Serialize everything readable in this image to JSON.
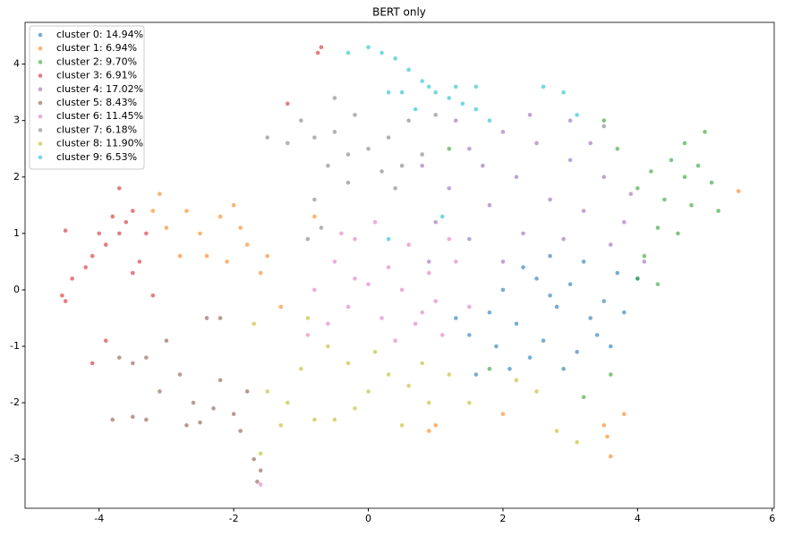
{
  "chart_data": {
    "type": "scatter",
    "title": "BERT only",
    "legend": "upper left",
    "xlim": [
      -5.1,
      6.03
    ],
    "ylim": [
      -3.87,
      4.74
    ],
    "xticks": [
      -4,
      -2,
      0,
      2,
      4,
      6
    ],
    "yticks": [
      -3,
      -2,
      -1,
      0,
      1,
      2,
      3,
      4
    ],
    "series": [
      {
        "name": "cluster 0: 14.94%",
        "color": "#1f77b4",
        "x": [
          2.5,
          3,
          2.8,
          3.3,
          2.2,
          1.8,
          2.6,
          3.1,
          2.9,
          2.4,
          3.5,
          3.7,
          3.2,
          2.7,
          2,
          1.5,
          1.3,
          1.6,
          2.1,
          3.4,
          3.8,
          4,
          2.3,
          1.9,
          2.7,
          3.6
        ],
        "y": [
          0.2,
          0.1,
          -0.3,
          -0.5,
          -0.6,
          -0.4,
          -0.9,
          -1.1,
          -1.4,
          -1.2,
          -0.2,
          0.3,
          0.5,
          0.6,
          0,
          -0.8,
          -0.5,
          -1.5,
          -1.4,
          -0.8,
          -0.4,
          0.2,
          0.4,
          -1.0,
          -0.1,
          -1.0
        ]
      },
      {
        "name": "cluster 1: 6.94%",
        "color": "#ff7f0e",
        "x": [
          -3.2,
          -3,
          -2.7,
          -2.5,
          -2.2,
          -2,
          -2.4,
          -2.1,
          -1.8,
          -1.6,
          -3.1,
          -2.8,
          -1.9,
          -1.5,
          -1.3,
          3.6,
          3.55,
          3.5,
          3.8,
          1.0,
          0.9,
          2.0,
          -0.8,
          5.5
        ],
        "y": [
          1.4,
          1.1,
          1.4,
          1.0,
          1.3,
          1.5,
          0.6,
          0.5,
          0.8,
          0.3,
          1.7,
          0.6,
          1.1,
          0.6,
          -0.3,
          -2.95,
          -2.6,
          -2.4,
          -2.2,
          -2.4,
          -2.5,
          -2.2,
          1.3,
          1.75
        ]
      },
      {
        "name": "cluster 2: 9.70%",
        "color": "#2ca02c",
        "x": [
          4.2,
          4.5,
          4.7,
          5,
          4.9,
          4.4,
          4.8,
          4.3,
          4.6,
          4.1,
          4.0,
          5.1,
          3.7,
          3.5,
          4.3,
          3.6,
          3.2,
          1.8,
          1.2,
          5.2,
          4.7,
          4.0
        ],
        "y": [
          2.1,
          2.3,
          2.0,
          2.8,
          2.2,
          1.6,
          1.5,
          1.1,
          1.0,
          0.6,
          0.2,
          1.9,
          2.5,
          3.0,
          0.1,
          -1.5,
          -1.9,
          -1.4,
          2.5,
          1.4,
          2.6,
          1.8
        ]
      },
      {
        "name": "cluster 3: 6.91%",
        "color": "#d62728",
        "x": [
          -3.8,
          -3.6,
          -3.7,
          -3.9,
          -4.1,
          -4.2,
          -4.4,
          -4.5,
          -4.55,
          -4.5,
          -3.5,
          -3.3,
          -3.7,
          -3.4,
          -3.2,
          -1.2,
          -0.7,
          -0.75,
          -3.9,
          -4.1,
          -4,
          -3.5
        ],
        "y": [
          1.3,
          1.2,
          1.0,
          0.8,
          0.6,
          0.4,
          0.2,
          1.05,
          -0.1,
          -0.2,
          1.4,
          1.0,
          1.8,
          0.5,
          -0.1,
          3.3,
          4.3,
          4.2,
          -0.9,
          -1.3,
          1.0,
          0.3
        ]
      },
      {
        "name": "cluster 4: 17.02%",
        "color": "#9467bd",
        "x": [
          1.5,
          2,
          2.5,
          3,
          3.5,
          2.2,
          1.8,
          2.7,
          3.2,
          3.8,
          1.2,
          1,
          1.5,
          2.3,
          2.9,
          3.6,
          4.1,
          0.8,
          1.3,
          2.4,
          3.0,
          3.9,
          2.0,
          0.9,
          1.7,
          3.3
        ],
        "y": [
          2.5,
          2.8,
          2.6,
          2.3,
          2.0,
          2.0,
          1.5,
          1.6,
          1.4,
          1.2,
          1.8,
          1.2,
          0.9,
          1.0,
          0.9,
          0.8,
          0.5,
          2.2,
          3.0,
          3.1,
          3.0,
          1.7,
          0.5,
          0.5,
          2.2,
          2.6
        ]
      },
      {
        "name": "cluster 5: 8.43%",
        "color": "#8c564b",
        "x": [
          -3.7,
          -3.5,
          -3.3,
          -3.8,
          -3.5,
          -3.3,
          -2.6,
          -2.3,
          -2,
          -2.5,
          -1.7,
          -1.65,
          -1.6,
          -2.2,
          -2.4,
          -3,
          -2.8,
          -2.2,
          -1.8,
          -2.7,
          -3.1,
          -1.9
        ],
        "y": [
          -1.2,
          -1.3,
          -1.2,
          -2.3,
          -2.25,
          -2.3,
          -2.0,
          -2.1,
          -2.2,
          -2.35,
          -3.0,
          -3.4,
          -3.2,
          -0.5,
          -0.5,
          -0.9,
          -1.5,
          -1.6,
          -1.8,
          -2.4,
          -1.8,
          -2.5
        ]
      },
      {
        "name": "cluster 6: 11.45%",
        "color": "#e377c2",
        "x": [
          -0.5,
          -0.2,
          0,
          0.3,
          0.5,
          0.8,
          1.1,
          0.2,
          -0.3,
          -0.8,
          -0.6,
          0.6,
          0.9,
          1.3,
          -0.2,
          0.1,
          1.0,
          0.4,
          -0.9,
          1.5,
          0.7,
          -0.4,
          1.2,
          -1.6
        ],
        "y": [
          0.5,
          0.2,
          0.1,
          0.4,
          0,
          -0.4,
          -0.8,
          -0.5,
          -0.3,
          0,
          -0.6,
          0.8,
          0.3,
          0.5,
          0.9,
          1.2,
          -0.2,
          -0.9,
          -0.8,
          -0.3,
          -0.6,
          1.0,
          0.9,
          -3.45
        ]
      },
      {
        "name": "cluster 7: 6.18%",
        "color": "#7f7f7f",
        "x": [
          -1,
          -0.8,
          -0.5,
          -0.3,
          0,
          0.3,
          0.6,
          0.8,
          -1.2,
          -0.6,
          -0.3,
          0.2,
          -0.8,
          -0.5,
          1.0,
          0.5,
          -1.5,
          -0.2,
          -0.9,
          0.4,
          3.5,
          -0.7
        ],
        "y": [
          3.0,
          2.7,
          2.8,
          2.4,
          2.5,
          2.7,
          3.0,
          2.4,
          2.6,
          2.2,
          1.9,
          2.1,
          1.6,
          3.4,
          3.1,
          2.2,
          2.7,
          3.1,
          0.9,
          1.8,
          2.9,
          1.1
        ]
      },
      {
        "name": "cluster 8: 11.90%",
        "color": "#bcbd22",
        "x": [
          -1.5,
          -1.2,
          -0.8,
          -0.5,
          -0.2,
          0,
          0.3,
          0.6,
          0.9,
          -0.3,
          -0.6,
          -1.0,
          0.1,
          0.8,
          1.2,
          1.5,
          0.5,
          -1.3,
          -1.6,
          -1.7,
          2.2,
          2.8,
          3.1,
          -0.9,
          2.5
        ],
        "y": [
          -1.8,
          -2,
          -2.3,
          -2.3,
          -2.1,
          -1.8,
          -1.5,
          -1.7,
          -2.0,
          -1.3,
          -1.0,
          -1.4,
          -1.1,
          -1.3,
          -1.5,
          -2.0,
          -2.4,
          -2.4,
          -2.9,
          -0.6,
          -1.6,
          -2.5,
          -2.7,
          -0.5,
          -1.8
        ]
      },
      {
        "name": "cluster 9: 6.53%",
        "color": "#17becf",
        "x": [
          0,
          0.2,
          0.4,
          -0.3,
          0.6,
          0.8,
          1,
          1.2,
          1.4,
          1.6,
          0.5,
          0.9,
          1.3,
          1.6,
          2.6,
          2.9,
          3.1,
          1.8,
          0.7,
          0.3,
          1.1,
          0.3
        ],
        "y": [
          4.3,
          4.2,
          4.1,
          4.2,
          3.9,
          3.7,
          3.5,
          3.4,
          3.3,
          3.2,
          3.5,
          3.6,
          3.6,
          3.6,
          3.6,
          3.5,
          3.1,
          3.0,
          3.2,
          3.5,
          1.3,
          0.9
        ]
      }
    ]
  }
}
